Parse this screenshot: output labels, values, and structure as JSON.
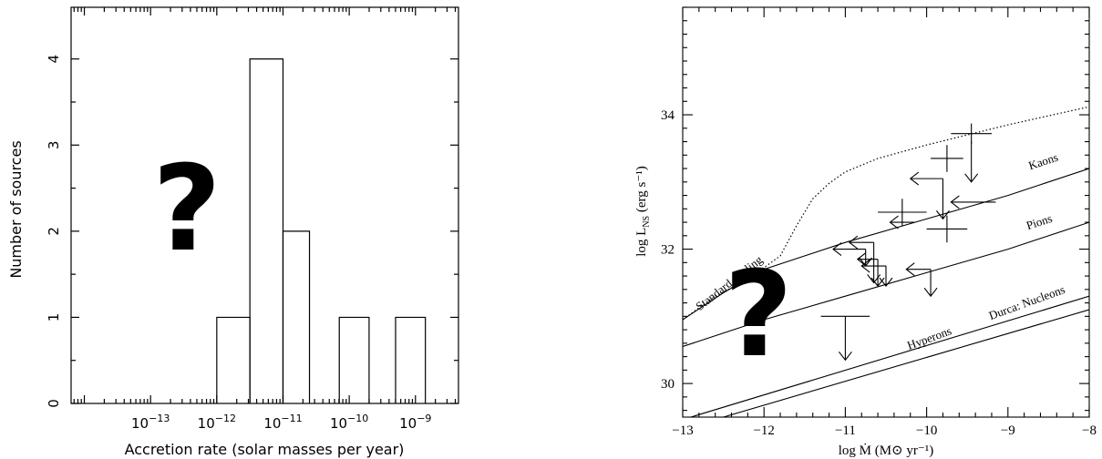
{
  "chart_data": [
    {
      "type": "histogram",
      "xlabel": "Accretion rate (solar masses per year)",
      "ylabel": "Number of sources",
      "xscale": "log",
      "xlim_log10": [
        -14.2,
        -8.35
      ],
      "ylim": [
        0,
        4.6
      ],
      "x_tick_labels": [
        {
          "exp": -13,
          "base": "10",
          "sup": "−13"
        },
        {
          "exp": -12,
          "base": "10",
          "sup": "−12"
        },
        {
          "exp": -11,
          "base": "10",
          "sup": "−11"
        },
        {
          "exp": -10,
          "base": "10",
          "sup": "−10"
        },
        {
          "exp": -9,
          "base": "10",
          "sup": "−9"
        }
      ],
      "y_ticks": [
        0,
        1,
        2,
        3,
        4
      ],
      "y_tick_labels": [
        "0",
        "1",
        "2",
        "3",
        "4"
      ],
      "bars": [
        {
          "x0_log10": -12.0,
          "x1_log10": -11.5,
          "count": 1
        },
        {
          "x0_log10": -11.5,
          "x1_log10": -11.0,
          "count": 4
        },
        {
          "x0_log10": -11.0,
          "x1_log10": -10.6,
          "count": 2
        },
        {
          "x0_log10": -10.15,
          "x1_log10": -9.7,
          "count": 1
        },
        {
          "x0_log10": -9.3,
          "x1_log10": -8.85,
          "count": 1
        }
      ],
      "annotation": "?"
    },
    {
      "type": "line+scatter",
      "xlabel": "log Ṁ (M⊙ yr⁻¹)",
      "ylabel": "log L_NS (erg s⁻¹)",
      "xlim": [
        -13,
        -8
      ],
      "ylim": [
        29.5,
        35.6
      ],
      "x_ticks": [
        -13,
        -12,
        -11,
        -10,
        -9,
        -8
      ],
      "x_tick_labels": [
        "−13",
        "−12",
        "−11",
        "−10",
        "−9",
        "−8"
      ],
      "y_ticks": [
        30,
        32,
        34
      ],
      "y_tick_labels": [
        "30",
        "32",
        "34"
      ],
      "curves": [
        {
          "name": "Standard cooling",
          "style": "dotted",
          "points": [
            [
              -13,
              30.95
            ],
            [
              -12.6,
              31.3
            ],
            [
              -12.2,
              31.55
            ],
            [
              -11.8,
              31.9
            ],
            [
              -11.6,
              32.35
            ],
            [
              -11.4,
              32.75
            ],
            [
              -11.2,
              32.98
            ],
            [
              -11.0,
              33.15
            ],
            [
              -10.6,
              33.35
            ],
            [
              -10.0,
              33.55
            ],
            [
              -9.0,
              33.85
            ],
            [
              -8.0,
              34.12
            ]
          ]
        },
        {
          "name": "Kaons",
          "style": "solid",
          "points": [
            [
              -13,
              30.95
            ],
            [
              -12.5,
              31.35
            ],
            [
              -12.0,
              31.7
            ],
            [
              -11.0,
              32.1
            ],
            [
              -10.0,
              32.45
            ],
            [
              -9.0,
              32.8
            ],
            [
              -8.0,
              33.2
            ]
          ]
        },
        {
          "name": "Pions",
          "style": "solid",
          "points": [
            [
              -13,
              30.55
            ],
            [
              -12.0,
              30.95
            ],
            [
              -11.0,
              31.3
            ],
            [
              -10.0,
              31.65
            ],
            [
              -9.0,
              32.0
            ],
            [
              -8.0,
              32.4
            ]
          ]
        },
        {
          "name": "Durca: Nucleons",
          "style": "solid",
          "points": [
            [
              -12.9,
              29.5
            ],
            [
              -8.0,
              31.3
            ]
          ]
        },
        {
          "name": "Hyperons",
          "style": "solid",
          "points": [
            [
              -12.5,
              29.5
            ],
            [
              -8.0,
              31.1
            ]
          ]
        }
      ],
      "curve_labels": [
        {
          "text": "Standard cooling",
          "x": -12.4,
          "y": 31.45,
          "angle": -38
        },
        {
          "text": "Kaons",
          "x": -8.55,
          "y": 33.25,
          "angle": -18
        },
        {
          "text": "Pions",
          "x": -8.6,
          "y": 32.35,
          "angle": -18
        },
        {
          "text": "Durca: Nucleons",
          "x": -8.75,
          "y": 31.15,
          "angle": -20
        },
        {
          "text": "Hyperons",
          "x": -9.95,
          "y": 30.62,
          "angle": -20
        }
      ],
      "detections": [
        {
          "x": -9.45,
          "y": 33.72,
          "xerr": 0.25,
          "yerr": 0.15,
          "ydown": 0
        },
        {
          "x": -9.75,
          "y": 33.35,
          "xerr": 0.2,
          "yerr": 0.2,
          "ydown": 0
        },
        {
          "x": -10.3,
          "y": 32.55,
          "xerr": 0.3,
          "yerr": 0.2,
          "ydown": 0
        },
        {
          "x": -9.75,
          "y": 32.3,
          "xerr": 0.25,
          "yerr": 0.2,
          "ydown": 0
        },
        {
          "x": -11.0,
          "y": 31.0,
          "xerr": 0.3,
          "yerr": 0.0,
          "ydown": 0.65
        }
      ],
      "upper_limits": [
        {
          "x": -9.45,
          "y": 33.6,
          "left": 0,
          "down": 0.6
        },
        {
          "x": -9.8,
          "y": 33.05,
          "left": 0.4,
          "down": 0.6
        },
        {
          "x": -9.15,
          "y": 32.7,
          "left": 0.55,
          "down": 0
        },
        {
          "x": -10.15,
          "y": 32.4,
          "left": 0.3,
          "down": 0
        },
        {
          "x": -10.65,
          "y": 32.1,
          "left": 0.3,
          "down": 0.6
        },
        {
          "x": -10.75,
          "y": 32.0,
          "left": 0.4,
          "down": 0.25
        },
        {
          "x": -10.6,
          "y": 31.85,
          "left": 0.25,
          "down": 0.4
        },
        {
          "x": -10.5,
          "y": 31.75,
          "left": 0.3,
          "down": 0.3
        },
        {
          "x": -9.95,
          "y": 31.7,
          "left": 0.3,
          "down": 0.4
        }
      ],
      "annotation": "?"
    }
  ]
}
